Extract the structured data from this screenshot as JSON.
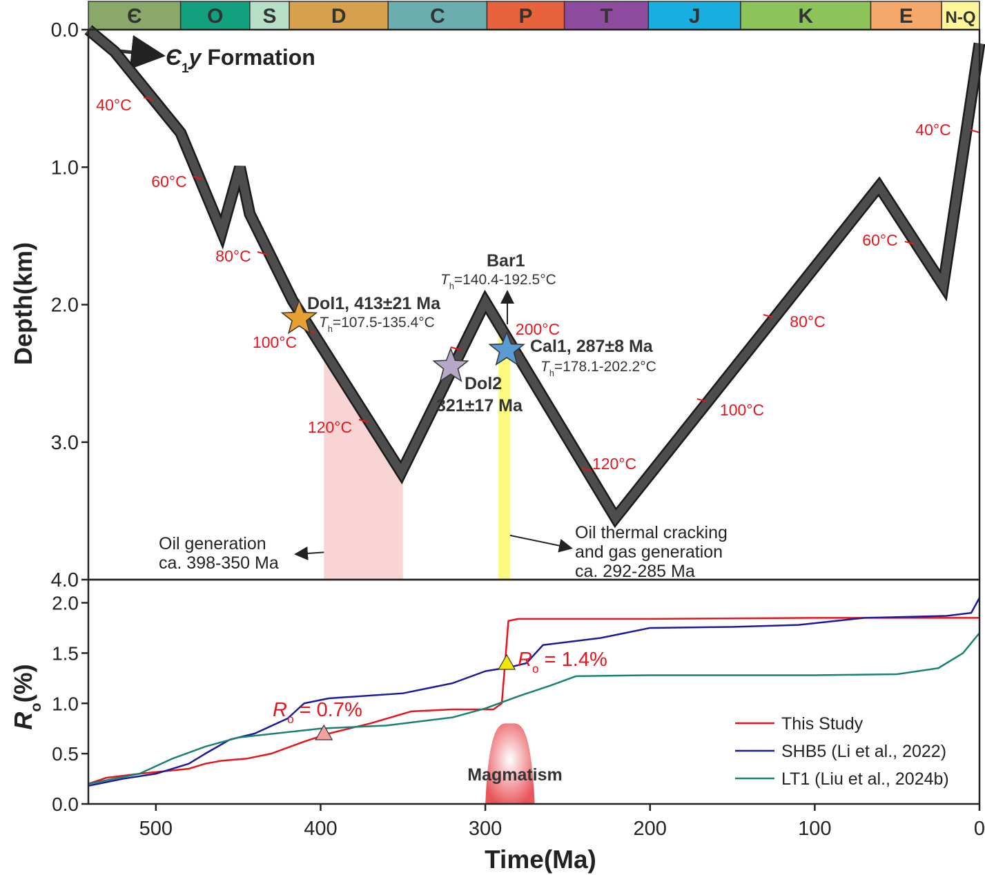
{
  "chart_data": [
    {
      "type": "burial",
      "formation_label": {
        "symbol": "Є",
        "sub": "1",
        "italic": "y",
        "text": " Formation"
      },
      "ylabel": "Depth(km)",
      "periods": {
        "names": [
          "Є",
          "O",
          "S",
          "D",
          "C",
          "P",
          "T",
          "J",
          "K",
          "E",
          "N-Q"
        ],
        "colors": [
          "#8aa86a",
          "#12a07f",
          "#b8e0c8",
          "#d6a04c",
          "#6aaeb0",
          "#e8623c",
          "#8e4c9e",
          "#18aee0",
          "#8cc45a",
          "#f5a86a",
          "#fff59a"
        ],
        "boundaries": [
          541,
          485,
          443,
          419,
          359,
          299,
          252,
          201,
          145,
          66,
          23,
          0
        ]
      },
      "x": [
        541,
        525,
        485,
        460,
        449,
        443,
        417,
        351,
        300,
        221,
        61,
        22,
        0
      ],
      "values": [
        0,
        0.16,
        0.75,
        1.47,
        1.0,
        1.34,
        1.97,
        3.22,
        1.98,
        3.55,
        1.14,
        1.86,
        0.1
      ],
      "color": "#4d4d4d",
      "xlim": [
        541,
        0
      ],
      "ylim": [
        0,
        4
      ],
      "yticks": [
        {
          "value": 0,
          "label": "0.0"
        },
        {
          "value": 1,
          "label": "1.0"
        },
        {
          "value": 2,
          "label": "2.0"
        },
        {
          "value": 3,
          "label": "3.0"
        },
        {
          "value": 4,
          "label": "4.0"
        }
      ],
      "isotherm_labels": [
        "40°C",
        "60°C",
        "80°C",
        "100°C",
        "120°C",
        "200°C",
        "120°C",
        "100°C",
        "80°C",
        "60°C",
        "40°C"
      ],
      "isotherm_color": "#e8141b",
      "samples": [
        {
          "label": [
            "Dol1, 413±21 Ma"
          ],
          "age": 413,
          "depth": 2.1,
          "color": "#e8a030",
          "th": {
            "symbol": "T",
            "sub": "h",
            "text": "=107.5-135.4°C"
          }
        },
        {
          "label": [
            "Dol2",
            "321±17 Ma"
          ],
          "age": 321,
          "depth": 2.45,
          "color": "#b8a8c8"
        },
        {
          "label": [
            "Cal1, 287±8 Ma"
          ],
          "age": 287,
          "depth": 2.33,
          "color": "#5b9bd5",
          "th": {
            "symbol": "T",
            "sub": "h",
            "text": "=178.1-202.2°C"
          }
        }
      ],
      "annotation": {
        "label": "Bar1",
        "th": {
          "symbol": "T",
          "sub": "h",
          "text": "=140.4-192.5°C"
        }
      },
      "windows": [
        {
          "label": [
            "Oil generation",
            "ca. 398-350 Ma"
          ],
          "start": 398,
          "end": 350,
          "color": "#f8d4d4"
        },
        {
          "label": [
            "Oil thermal cracking",
            "and gas generation",
            "ca. 292-285 Ma"
          ],
          "start": 292,
          "end": 285,
          "color": "#fafa80"
        }
      ]
    },
    {
      "type": "line",
      "ylabel": {
        "symbol": "R",
        "sub": "o",
        "text": "(%)"
      },
      "xlabel": "Time(Ma)",
      "xlim": [
        541,
        0
      ],
      "xticks": [
        500,
        400,
        300,
        200,
        100,
        0
      ],
      "ylim": [
        0,
        2.23
      ],
      "yticks": [
        {
          "value": 0,
          "label": "0.0"
        },
        {
          "value": 0.5,
          "label": "0.5"
        },
        {
          "value": 1,
          "label": "1.0"
        },
        {
          "value": 1.5,
          "label": "1.5"
        },
        {
          "value": 2,
          "label": "2.0"
        }
      ],
      "legend": "lower right",
      "series": [
        {
          "name": "This Study",
          "color": "#e8141b",
          "x": [
            541,
            530,
            510,
            480,
            470,
            460,
            445,
            430,
            410,
            395,
            370,
            345,
            320,
            295,
            290,
            288,
            286,
            280,
            200,
            100,
            0
          ],
          "values": [
            0.2,
            0.26,
            0.3,
            0.35,
            0.4,
            0.43,
            0.45,
            0.5,
            0.62,
            0.7,
            0.8,
            0.92,
            0.94,
            0.94,
            1.0,
            1.4,
            1.82,
            1.84,
            1.84,
            1.85,
            1.85
          ]
        },
        {
          "name": "SHB5 (Li et al., 2022)",
          "color": "#1a1a9a",
          "x": [
            541,
            520,
            500,
            480,
            470,
            455,
            440,
            420,
            410,
            395,
            350,
            320,
            300,
            285,
            275,
            265,
            245,
            230,
            200,
            150,
            110,
            70,
            20,
            5,
            0
          ],
          "values": [
            0.18,
            0.25,
            0.3,
            0.4,
            0.5,
            0.64,
            0.7,
            0.85,
            1.0,
            1.05,
            1.1,
            1.2,
            1.32,
            1.36,
            1.4,
            1.58,
            1.62,
            1.65,
            1.75,
            1.76,
            1.78,
            1.85,
            1.87,
            1.9,
            2.05
          ]
        },
        {
          "name": "LT1 (Liu et al., 2024b)",
          "color": "#1a8070",
          "x": [
            541,
            510,
            490,
            470,
            450,
            400,
            360,
            320,
            300,
            280,
            260,
            245,
            200,
            100,
            50,
            25,
            10,
            0
          ],
          "values": [
            0.2,
            0.3,
            0.45,
            0.57,
            0.66,
            0.75,
            0.78,
            0.86,
            0.95,
            1.07,
            1.18,
            1.27,
            1.28,
            1.28,
            1.29,
            1.35,
            1.5,
            1.7
          ]
        }
      ],
      "markers": [
        {
          "label": {
            "symbol": "R",
            "sub": "o",
            "text": " = 0.7%"
          },
          "age": 398,
          "value": 0.7,
          "color": "#f4a0a0"
        },
        {
          "label": {
            "symbol": "R",
            "sub": "o",
            "text": " = 1.4%"
          },
          "age": 287,
          "value": 1.4,
          "color": "#f5e600"
        }
      ],
      "marker_label_color": "#e8141b",
      "magmatism": {
        "label": "Magmatism",
        "start": 300,
        "end": 270,
        "peak": 0.8
      }
    }
  ]
}
